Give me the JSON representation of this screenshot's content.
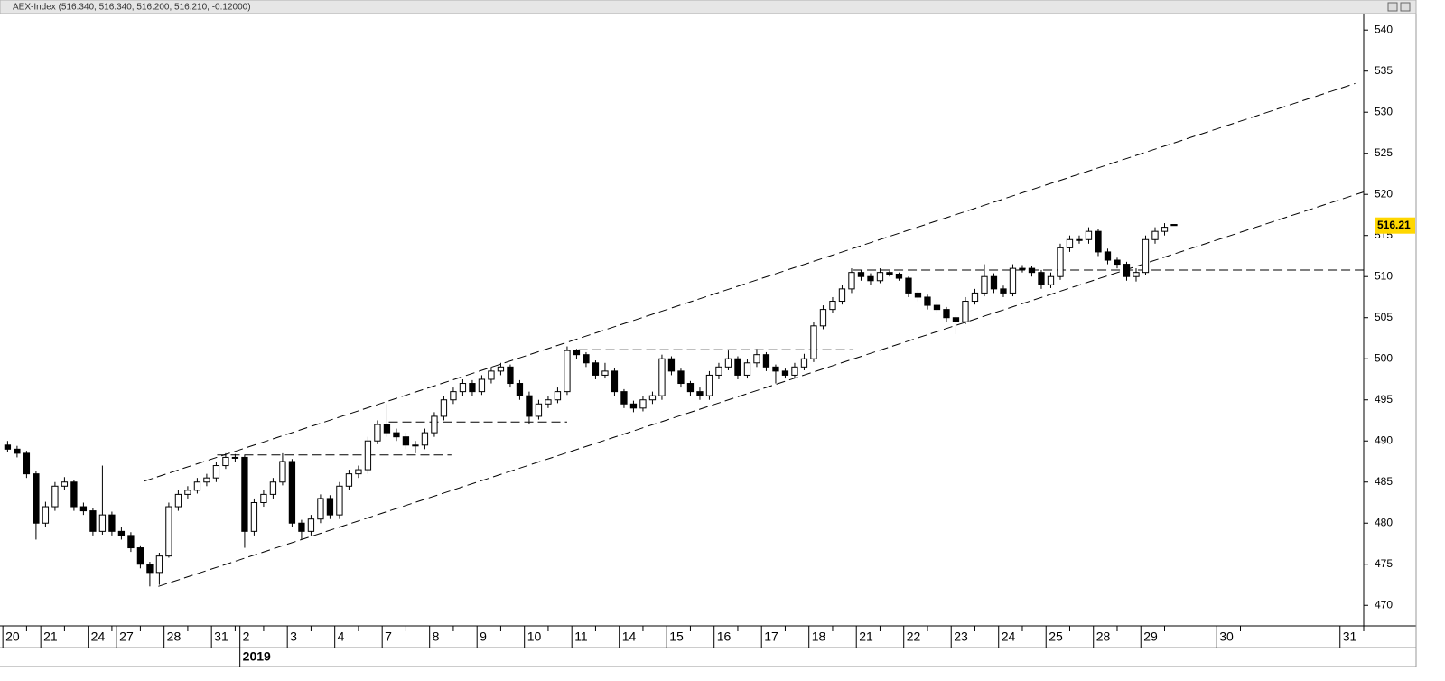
{
  "chart_data": {
    "type": "candlestick",
    "title": "AEX-Index (516.340, 516.340, 516.200, 516.210, -0.12000)",
    "up_color": "#ffffff",
    "down_color": "#000000",
    "line_color": "#000000",
    "last_price": 516.21,
    "last_price_color": "#ffd700",
    "ylim": [
      467.5,
      542
    ],
    "yticks": [
      470,
      475,
      480,
      485,
      490,
      495,
      500,
      505,
      510,
      515,
      520,
      525,
      530,
      535,
      540
    ],
    "xlim": [
      -0.8,
      143
    ],
    "xticks": [
      {
        "value": -0.5,
        "label": "20"
      },
      {
        "value": 3.5,
        "label": "21"
      },
      {
        "value": 8.5,
        "label": "24"
      },
      {
        "value": 11.5,
        "label": "27"
      },
      {
        "value": 16.5,
        "label": "28"
      },
      {
        "value": 21.5,
        "label": "31"
      },
      {
        "value": 24.5,
        "label": "2"
      },
      {
        "value": 29.5,
        "label": "3"
      },
      {
        "value": 34.5,
        "label": "4"
      },
      {
        "value": 39.5,
        "label": "7"
      },
      {
        "value": 44.5,
        "label": "8"
      },
      {
        "value": 49.5,
        "label": "9"
      },
      {
        "value": 54.5,
        "label": "10"
      },
      {
        "value": 59.5,
        "label": "11"
      },
      {
        "value": 64.5,
        "label": "14"
      },
      {
        "value": 69.5,
        "label": "15"
      },
      {
        "value": 74.5,
        "label": "16"
      },
      {
        "value": 79.5,
        "label": "17"
      },
      {
        "value": 84.5,
        "label": "18"
      },
      {
        "value": 89.5,
        "label": "21"
      },
      {
        "value": 94.5,
        "label": "22"
      },
      {
        "value": 99.5,
        "label": "23"
      },
      {
        "value": 104.5,
        "label": "24"
      },
      {
        "value": 109.5,
        "label": "25"
      },
      {
        "value": 114.5,
        "label": "28"
      },
      {
        "value": 119.5,
        "label": "29"
      },
      {
        "value": 127.5,
        "label": "30"
      },
      {
        "value": 140.5,
        "label": "31"
      }
    ],
    "year_ticks": [
      {
        "value": 24.5,
        "label": "2019"
      }
    ],
    "trendlines": [
      {
        "x": [
          14.4,
          142.1
        ],
        "y": [
          485.1,
          533.5
        ]
      },
      {
        "x": [
          15.9,
          143
        ],
        "y": [
          472.3,
          520.3
        ]
      },
      {
        "x": [
          22.1,
          46.8
        ],
        "y": [
          488.3,
          488.3
        ]
      },
      {
        "x": [
          40.2,
          59.0
        ],
        "y": [
          492.3,
          492.3
        ]
      },
      {
        "x": [
          60.2,
          89.2
        ],
        "y": [
          501.1,
          501.1
        ]
      },
      {
        "x": [
          89.2,
          143
        ],
        "y": [
          510.8,
          510.8
        ]
      }
    ],
    "candles": [
      [
        489.5,
        490,
        488.6,
        489
      ],
      [
        489,
        489.4,
        488,
        488.5
      ],
      [
        488.5,
        488.8,
        485.5,
        486
      ],
      [
        486,
        486.3,
        478,
        480
      ],
      [
        480,
        482.6,
        479.5,
        482
      ],
      [
        482,
        485,
        481.5,
        484.5
      ],
      [
        484.5,
        485.6,
        484,
        485
      ],
      [
        485,
        485.3,
        481.5,
        482
      ],
      [
        482,
        482.5,
        481,
        481.5
      ],
      [
        481.5,
        481.8,
        478.5,
        479
      ],
      [
        479,
        487,
        478.6,
        481
      ],
      [
        481,
        481.4,
        478.5,
        479
      ],
      [
        479,
        479.5,
        478,
        478.5
      ],
      [
        478.5,
        478.9,
        476.5,
        477
      ],
      [
        477,
        477.3,
        474.5,
        475
      ],
      [
        475,
        475.3,
        472.3,
        474
      ],
      [
        474,
        476.4,
        472.5,
        476
      ],
      [
        476,
        482.5,
        475.8,
        482
      ],
      [
        482,
        484,
        481.5,
        483.5
      ],
      [
        483.5,
        484.5,
        483,
        484
      ],
      [
        484,
        485.5,
        483.6,
        485
      ],
      [
        485,
        486,
        484.5,
        485.5
      ],
      [
        485.5,
        487.5,
        485,
        487
      ],
      [
        487,
        488.5,
        486.6,
        488
      ],
      [
        488,
        488.4,
        487.5,
        488
      ],
      [
        488,
        488.3,
        477,
        479
      ],
      [
        479,
        483,
        478.5,
        482.5
      ],
      [
        482.5,
        484,
        482,
        483.5
      ],
      [
        483.5,
        485.5,
        483,
        485
      ],
      [
        485,
        488.5,
        484.6,
        487.5
      ],
      [
        487.5,
        487.8,
        479.5,
        480
      ],
      [
        480,
        480.4,
        478,
        479
      ],
      [
        479,
        481,
        478.5,
        480.5
      ],
      [
        480.5,
        483.5,
        480,
        483
      ],
      [
        483,
        483.4,
        480.5,
        481
      ],
      [
        481,
        485,
        480.5,
        484.5
      ],
      [
        484.5,
        486.5,
        484,
        486
      ],
      [
        486,
        487,
        485.5,
        486.5
      ],
      [
        486.5,
        490.5,
        486,
        490
      ],
      [
        490,
        492.5,
        489.6,
        492
      ],
      [
        492,
        494.5,
        490.5,
        491
      ],
      [
        491,
        491.5,
        490,
        490.5
      ],
      [
        490.5,
        491,
        489,
        489.5
      ],
      [
        489.5,
        490,
        488.5,
        489.5
      ],
      [
        489.5,
        491.5,
        489,
        491
      ],
      [
        491,
        493.5,
        490.5,
        493
      ],
      [
        493,
        495.5,
        492.5,
        495
      ],
      [
        495,
        496.5,
        494.5,
        496
      ],
      [
        496,
        497.5,
        495.5,
        497
      ],
      [
        497,
        497.4,
        495.5,
        496
      ],
      [
        496,
        498,
        495.6,
        497.5
      ],
      [
        497.5,
        499,
        497,
        498.5
      ],
      [
        498.5,
        499.5,
        498,
        499
      ],
      [
        499,
        499.3,
        496.5,
        497
      ],
      [
        497,
        497.4,
        495,
        495.5
      ],
      [
        495.5,
        496,
        492,
        493
      ],
      [
        493,
        495,
        492.6,
        494.5
      ],
      [
        494.5,
        495.5,
        494,
        495
      ],
      [
        495,
        496.5,
        494.6,
        496
      ],
      [
        496,
        501.5,
        495.6,
        501
      ],
      [
        501,
        501.2,
        500,
        500.5
      ],
      [
        500.5,
        500.8,
        499,
        499.5
      ],
      [
        499.5,
        499.8,
        497.5,
        498
      ],
      [
        498,
        499.5,
        497.6,
        498.5
      ],
      [
        498.5,
        498.9,
        495.5,
        496
      ],
      [
        496,
        496.3,
        494,
        494.5
      ],
      [
        494.5,
        494.9,
        493.5,
        494
      ],
      [
        494,
        495.5,
        493.6,
        495
      ],
      [
        495,
        496,
        494.5,
        495.5
      ],
      [
        495.5,
        500.5,
        495,
        500
      ],
      [
        500,
        500.3,
        498,
        498.5
      ],
      [
        498.5,
        498.8,
        496.5,
        497
      ],
      [
        497,
        497.3,
        495.5,
        496
      ],
      [
        496,
        496.5,
        495,
        495.5
      ],
      [
        495.5,
        498.5,
        495,
        498
      ],
      [
        498,
        499.5,
        497.5,
        499
      ],
      [
        499,
        501,
        498.6,
        500
      ],
      [
        500,
        500.3,
        497.5,
        498
      ],
      [
        498,
        500,
        497.6,
        499.5
      ],
      [
        499.5,
        501.2,
        499,
        500.5
      ],
      [
        500.5,
        500.8,
        498.5,
        499
      ],
      [
        499,
        499.3,
        497,
        498.5
      ],
      [
        498.5,
        498.8,
        497.6,
        498
      ],
      [
        498,
        499.5,
        497.6,
        499
      ],
      [
        499,
        500.6,
        498.6,
        500
      ],
      [
        500,
        504.5,
        499.6,
        504
      ],
      [
        504,
        506.5,
        503.6,
        506
      ],
      [
        506,
        507.5,
        505.6,
        507
      ],
      [
        507,
        509,
        506.6,
        508.5
      ],
      [
        508.5,
        511,
        508,
        510.5
      ],
      [
        510.5,
        510.8,
        509.5,
        510
      ],
      [
        510,
        510.4,
        509,
        509.5
      ],
      [
        509.5,
        511,
        509.2,
        510.5
      ],
      [
        510.5,
        510.7,
        510,
        510.3
      ],
      [
        510.3,
        510.5,
        509.5,
        509.8
      ],
      [
        509.8,
        510,
        507.5,
        508
      ],
      [
        508,
        508.4,
        507,
        507.5
      ],
      [
        507.5,
        507.8,
        506,
        506.5
      ],
      [
        506.5,
        506.9,
        505.5,
        506
      ],
      [
        506,
        506.3,
        504.5,
        505
      ],
      [
        505,
        505.3,
        503,
        504.5
      ],
      [
        504.5,
        507.5,
        504.2,
        507
      ],
      [
        507,
        508.5,
        506.6,
        508
      ],
      [
        508,
        511.5,
        507.6,
        510
      ],
      [
        510,
        510.4,
        508,
        508.5
      ],
      [
        508.5,
        508.9,
        507.5,
        508
      ],
      [
        508,
        511.5,
        507.6,
        511
      ],
      [
        511,
        511.4,
        510.5,
        511
      ],
      [
        511,
        511.3,
        510,
        510.5
      ],
      [
        510.5,
        510.8,
        508.5,
        509
      ],
      [
        509,
        510.5,
        508.6,
        510
      ],
      [
        510,
        514,
        509.6,
        513.5
      ],
      [
        513.5,
        515,
        513,
        514.5
      ],
      [
        514.5,
        515,
        514,
        514.5
      ],
      [
        514.5,
        516,
        514,
        515.5
      ],
      [
        515.5,
        515.8,
        512.5,
        513
      ],
      [
        513,
        513.4,
        511.5,
        512
      ],
      [
        512,
        512.3,
        511,
        511.5
      ],
      [
        511.5,
        511.8,
        509.5,
        510
      ],
      [
        510,
        511,
        509.4,
        510.5
      ],
      [
        510.5,
        515,
        510.2,
        514.5
      ],
      [
        514.5,
        516,
        514,
        515.5
      ],
      [
        515.5,
        516.5,
        515,
        516
      ],
      [
        516.34,
        516.34,
        516.2,
        516.21
      ]
    ]
  }
}
